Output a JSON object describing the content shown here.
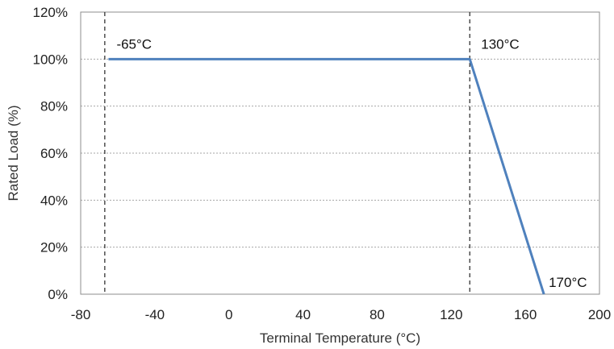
{
  "chart_data": {
    "type": "line",
    "title": "",
    "xlabel": "Terminal Temperature (°C)",
    "ylabel": "Rated Load (%)",
    "xlim": [
      -80,
      200
    ],
    "ylim": [
      0,
      120
    ],
    "x_ticks": [
      -80,
      -40,
      0,
      40,
      80,
      120,
      160,
      200
    ],
    "x_tick_labels": [
      "-80",
      "-40",
      "0",
      "40",
      "80",
      "120",
      "160",
      "200"
    ],
    "y_ticks": [
      0,
      20,
      40,
      60,
      80,
      100,
      120
    ],
    "y_tick_labels": [
      "0%",
      "20%",
      "40%",
      "60%",
      "80%",
      "100%",
      "120%"
    ],
    "grid": "horizontal dashed",
    "legend": "none",
    "series": [
      {
        "color": "#4f81bd",
        "points": [
          {
            "x": -65,
            "y": 100
          },
          {
            "x": 130,
            "y": 100
          },
          {
            "x": 170,
            "y": 0
          }
        ]
      }
    ],
    "reference_lines": [
      {
        "x": -67,
        "style": "dashed"
      },
      {
        "x": 130,
        "style": "dashed"
      }
    ],
    "annotations": [
      {
        "text": "-65°C",
        "x": -65,
        "y": 100
      },
      {
        "text": "130°C",
        "x": 130,
        "y": 100
      },
      {
        "text": "170°C",
        "x": 170,
        "y": 0
      }
    ]
  }
}
